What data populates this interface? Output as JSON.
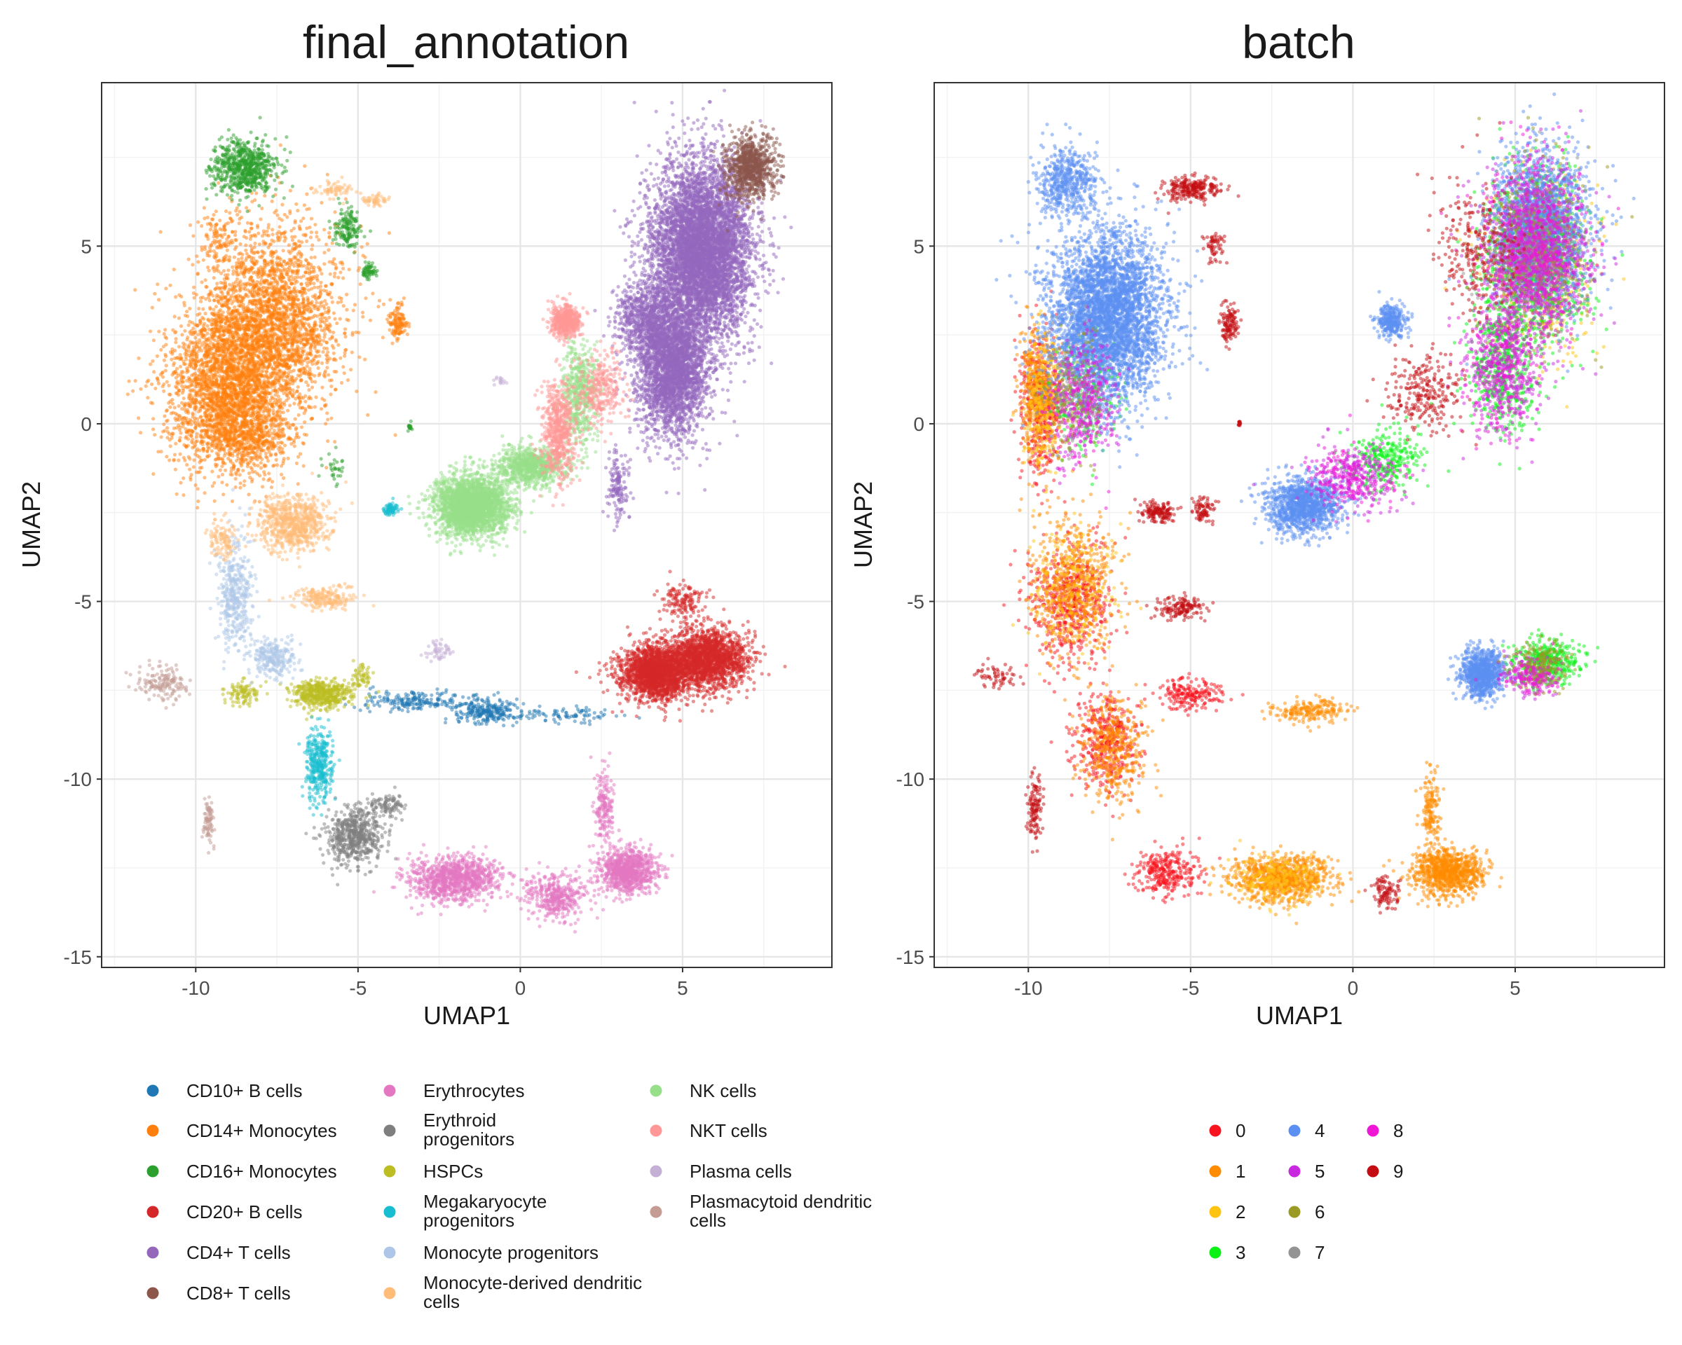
{
  "chart_data": [
    {
      "type": "scatter",
      "title": "final_annotation",
      "xlabel": "UMAP1",
      "ylabel": "UMAP2",
      "xlim": [
        -12.9,
        9.6
      ],
      "ylim": [
        -15.3,
        9.6
      ],
      "xticks": [
        -10,
        -5,
        0,
        5
      ],
      "yticks": [
        -15,
        -10,
        -5,
        0,
        5
      ],
      "xtick_labels": [
        "-10",
        "-5",
        "0",
        "5"
      ],
      "ytick_labels": [
        "-15",
        "-10",
        "-5",
        "0",
        "5"
      ],
      "grid": true,
      "legend_position": "bottom",
      "series": [
        {
          "name": "CD10+ B cells",
          "color": "#1F77B4",
          "clusters": [
            [
              -3.2,
              -7.8,
              1.6,
              0.25,
              200
            ],
            [
              -1.0,
              -8.1,
              0.9,
              0.3,
              250
            ],
            [
              1.5,
              -8.2,
              1.2,
              0.2,
              80
            ]
          ]
        },
        {
          "name": "CD14+ Monocytes",
          "color": "#FF7F0E",
          "clusters": [
            [
              -9.0,
              1.0,
              1.7,
              2.1,
              2500
            ],
            [
              -7.6,
              2.9,
              1.9,
              2.4,
              2500
            ],
            [
              -8.3,
              -0.4,
              1.3,
              0.8,
              400
            ],
            [
              -9.3,
              5.2,
              0.6,
              0.9,
              100
            ],
            [
              -3.8,
              2.8,
              0.25,
              0.5,
              120
            ]
          ]
        },
        {
          "name": "CD16+ Monocytes",
          "color": "#2CA02C",
          "clusters": [
            [
              -8.5,
              7.2,
              0.9,
              0.7,
              700
            ],
            [
              -5.3,
              5.5,
              0.4,
              0.5,
              150
            ],
            [
              -4.7,
              4.3,
              0.2,
              0.2,
              60
            ],
            [
              -3.4,
              -0.1,
              0.06,
              0.08,
              20
            ],
            [
              -5.7,
              -1.2,
              0.3,
              0.4,
              30
            ]
          ]
        },
        {
          "name": "CD20+ B cells",
          "color": "#D62728",
          "clusters": [
            [
              4.2,
              -7.0,
              1.0,
              0.7,
              2000
            ],
            [
              5.8,
              -6.6,
              1.1,
              0.75,
              1800
            ],
            [
              5.0,
              -5.0,
              0.6,
              0.5,
              150
            ]
          ]
        },
        {
          "name": "CD4+ T cells",
          "color": "#9467BD",
          "clusters": [
            [
              5.6,
              4.9,
              1.4,
              2.2,
              6000
            ],
            [
              4.7,
              1.6,
              1.0,
              1.7,
              3000
            ],
            [
              3.8,
              3.0,
              0.8,
              0.9,
              600
            ],
            [
              3.0,
              -1.8,
              0.3,
              0.8,
              150
            ]
          ]
        },
        {
          "name": "CD8+ T cells",
          "color": "#8C564B",
          "clusters": [
            [
              7.1,
              7.2,
              0.7,
              0.8,
              900
            ]
          ]
        },
        {
          "name": "Erythrocytes",
          "color": "#E377C2",
          "clusters": [
            [
              -2.0,
              -12.8,
              1.3,
              0.55,
              1000
            ],
            [
              3.3,
              -12.6,
              0.8,
              0.55,
              900
            ],
            [
              1.1,
              -13.3,
              0.8,
              0.6,
              400
            ],
            [
              2.6,
              -10.8,
              0.25,
              0.9,
              180
            ]
          ]
        },
        {
          "name": "Erythroid progenitors",
          "color": "#7F7F7F",
          "clusters": [
            [
              -5.1,
              -11.6,
              0.8,
              0.7,
              600
            ],
            [
              -4.1,
              -10.7,
              0.5,
              0.3,
              100
            ]
          ]
        },
        {
          "name": "HSPCs",
          "color": "#BCBD22",
          "clusters": [
            [
              -6.1,
              -7.6,
              0.8,
              0.35,
              500
            ],
            [
              -8.5,
              -7.6,
              0.5,
              0.3,
              100
            ],
            [
              -4.9,
              -7.1,
              0.3,
              0.3,
              60
            ]
          ]
        },
        {
          "name": "Megakaryocyte progenitors",
          "color": "#17BECF",
          "clusters": [
            [
              -6.2,
              -9.6,
              0.35,
              0.9,
              350
            ],
            [
              -4.0,
              -2.4,
              0.2,
              0.15,
              80
            ]
          ]
        },
        {
          "name": "Monocyte progenitors",
          "color": "#AEC7E8",
          "clusters": [
            [
              -8.8,
              -4.8,
              0.5,
              1.4,
              400
            ],
            [
              -7.6,
              -6.6,
              0.6,
              0.5,
              250
            ]
          ]
        },
        {
          "name": "Monocyte-derived dendritic cells",
          "color": "#FFBB78",
          "clusters": [
            [
              -7.0,
              -2.8,
              1.0,
              0.7,
              700
            ],
            [
              -6.0,
              -4.9,
              0.9,
              0.35,
              200
            ],
            [
              -9.2,
              -3.2,
              0.4,
              0.5,
              100
            ],
            [
              -5.7,
              6.6,
              0.5,
              0.2,
              60
            ],
            [
              -4.5,
              6.3,
              0.4,
              0.15,
              50
            ]
          ]
        },
        {
          "name": "NK cells",
          "color": "#98DF8A",
          "clusters": [
            [
              -1.5,
              -2.3,
              1.0,
              0.75,
              2500
            ],
            [
              0.3,
              -1.2,
              0.9,
              0.5,
              800
            ],
            [
              1.8,
              0.8,
              0.5,
              1.4,
              500
            ]
          ]
        },
        {
          "name": "NKT cells",
          "color": "#FF9896",
          "clusters": [
            [
              1.4,
              2.9,
              0.4,
              0.4,
              500
            ],
            [
              1.2,
              -0.2,
              0.5,
              1.3,
              600
            ],
            [
              2.5,
              1.0,
              0.6,
              0.9,
              300
            ]
          ]
        },
        {
          "name": "Plasma cells",
          "color": "#C5B0D5",
          "clusters": [
            [
              -2.5,
              -6.4,
              0.4,
              0.25,
              50
            ],
            [
              -0.6,
              1.2,
              0.2,
              0.15,
              15
            ]
          ]
        },
        {
          "name": "Plasmacytoid dendritic cells",
          "color": "#C49C94",
          "clusters": [
            [
              -11.0,
              -7.3,
              0.7,
              0.45,
              150
            ],
            [
              -9.6,
              -11.2,
              0.15,
              0.6,
              80
            ]
          ]
        }
      ]
    },
    {
      "type": "scatter",
      "title": "batch",
      "xlabel": "UMAP1",
      "ylabel": "UMAP2",
      "xlim": [
        -12.9,
        9.6
      ],
      "ylim": [
        -15.3,
        9.6
      ],
      "xticks": [
        -10,
        -5,
        0,
        5
      ],
      "yticks": [
        -15,
        -10,
        -5,
        0,
        5
      ],
      "xtick_labels": [
        "-10",
        "-5",
        "0",
        "5"
      ],
      "ytick_labels": [
        "-15",
        "-10",
        "-5",
        "0",
        "5"
      ],
      "grid": true,
      "legend_position": "bottom",
      "series": [
        {
          "name": "0",
          "color": "#F8141E",
          "clusters": [
            [
              -9.6,
              0.6,
              0.6,
              1.8,
              500
            ],
            [
              -8.7,
              -5.0,
              1.1,
              1.5,
              600
            ],
            [
              -7.6,
              -9.0,
              0.9,
              1.2,
              400
            ],
            [
              -5.0,
              -7.6,
              0.9,
              0.4,
              200
            ],
            [
              -5.8,
              -12.6,
              0.9,
              0.6,
              300
            ]
          ]
        },
        {
          "name": "1",
          "color": "#FF8C00",
          "clusters": [
            [
              -9.7,
              0.8,
              0.5,
              1.8,
              400
            ],
            [
              -8.6,
              -4.5,
              1.2,
              1.7,
              500
            ],
            [
              -7.4,
              -9.2,
              0.9,
              1.4,
              400
            ],
            [
              -2.2,
              -12.8,
              1.4,
              0.6,
              900
            ],
            [
              2.9,
              -12.6,
              1.0,
              0.6,
              900
            ],
            [
              2.4,
              -10.8,
              0.25,
              0.9,
              150
            ],
            [
              -1.3,
              -8.1,
              1.1,
              0.3,
              200
            ]
          ]
        },
        {
          "name": "2",
          "color": "#FFC412",
          "clusters": [
            [
              -9.5,
              0.8,
              0.6,
              1.9,
              300
            ],
            [
              -8.6,
              -4.6,
              1.2,
              1.6,
              250
            ],
            [
              5.8,
              4.5,
              1.5,
              2.3,
              600
            ],
            [
              -2.2,
              -12.8,
              1.3,
              0.6,
              200
            ]
          ]
        },
        {
          "name": "3",
          "color": "#0AF215",
          "clusters": [
            [
              5.6,
              4.8,
              1.4,
              2.2,
              1100
            ],
            [
              4.6,
              1.6,
              1.0,
              1.7,
              500
            ],
            [
              -8.2,
              1.0,
              0.9,
              1.5,
              250
            ],
            [
              1.0,
              -1.0,
              1.0,
              0.8,
              300
            ],
            [
              6.0,
              -6.7,
              0.9,
              0.6,
              400
            ]
          ]
        },
        {
          "name": "4",
          "color": "#5B8FF1",
          "clusters": [
            [
              -7.6,
              3.0,
              1.6,
              2.2,
              4000
            ],
            [
              -8.8,
              6.8,
              0.8,
              0.9,
              500
            ],
            [
              5.8,
              5.5,
              1.4,
              2.0,
              1800
            ],
            [
              -1.5,
              -2.3,
              1.0,
              0.7,
              1200
            ],
            [
              4.0,
              -7.0,
              0.6,
              0.6,
              900
            ],
            [
              1.2,
              2.9,
              0.4,
              0.4,
              300
            ]
          ]
        },
        {
          "name": "5",
          "color": "#C927E0",
          "clusters": [
            [
              5.6,
              4.8,
              1.4,
              2.2,
              1000
            ],
            [
              4.6,
              1.6,
              1.0,
              1.7,
              400
            ],
            [
              -8.3,
              0.6,
              0.9,
              1.5,
              250
            ],
            [
              0.0,
              -1.5,
              1.2,
              0.8,
              250
            ],
            [
              5.5,
              -7.1,
              0.8,
              0.5,
              150
            ]
          ]
        },
        {
          "name": "6",
          "color": "#9A9A24",
          "clusters": [
            [
              5.6,
              4.8,
              1.4,
              2.2,
              350
            ],
            [
              -8.7,
              0.8,
              0.8,
              1.6,
              150
            ],
            [
              5.8,
              -6.8,
              0.9,
              0.6,
              200
            ]
          ]
        },
        {
          "name": "7",
          "color": "#939393",
          "clusters": [
            [
              5.6,
              4.8,
              1.4,
              2.2,
              200
            ],
            [
              -8.7,
              0.8,
              0.8,
              1.6,
              100
            ]
          ]
        },
        {
          "name": "8",
          "color": "#F016D5",
          "clusters": [
            [
              5.6,
              4.8,
              1.4,
              2.2,
              700
            ],
            [
              4.6,
              1.6,
              1.0,
              1.7,
              250
            ],
            [
              -8.3,
              0.6,
              0.9,
              1.5,
              200
            ],
            [
              0.0,
              -1.5,
              1.2,
              0.8,
              200
            ],
            [
              5.5,
              -7.1,
              0.8,
              0.5,
              100
            ]
          ]
        },
        {
          "name": "9",
          "color": "#C40D12",
          "clusters": [
            [
              -5.0,
              6.6,
              0.8,
              0.3,
              250
            ],
            [
              -4.3,
              5.0,
              0.3,
              0.4,
              60
            ],
            [
              -3.8,
              2.8,
              0.25,
              0.5,
              120
            ],
            [
              -6.0,
              -2.5,
              0.5,
              0.25,
              150
            ],
            [
              -4.6,
              -2.4,
              0.3,
              0.3,
              80
            ],
            [
              -5.3,
              -5.2,
              0.7,
              0.3,
              150
            ],
            [
              -9.8,
              -10.8,
              0.2,
              0.8,
              120
            ],
            [
              -11.0,
              -7.1,
              0.5,
              0.35,
              60
            ],
            [
              3.7,
              5.0,
              1.1,
              1.8,
              250
            ],
            [
              2.2,
              0.9,
              1.0,
              1.0,
              250
            ],
            [
              1.0,
              -13.2,
              0.4,
              0.4,
              100
            ],
            [
              -3.5,
              0.0,
              0.05,
              0.08,
              15
            ]
          ]
        }
      ]
    }
  ]
}
